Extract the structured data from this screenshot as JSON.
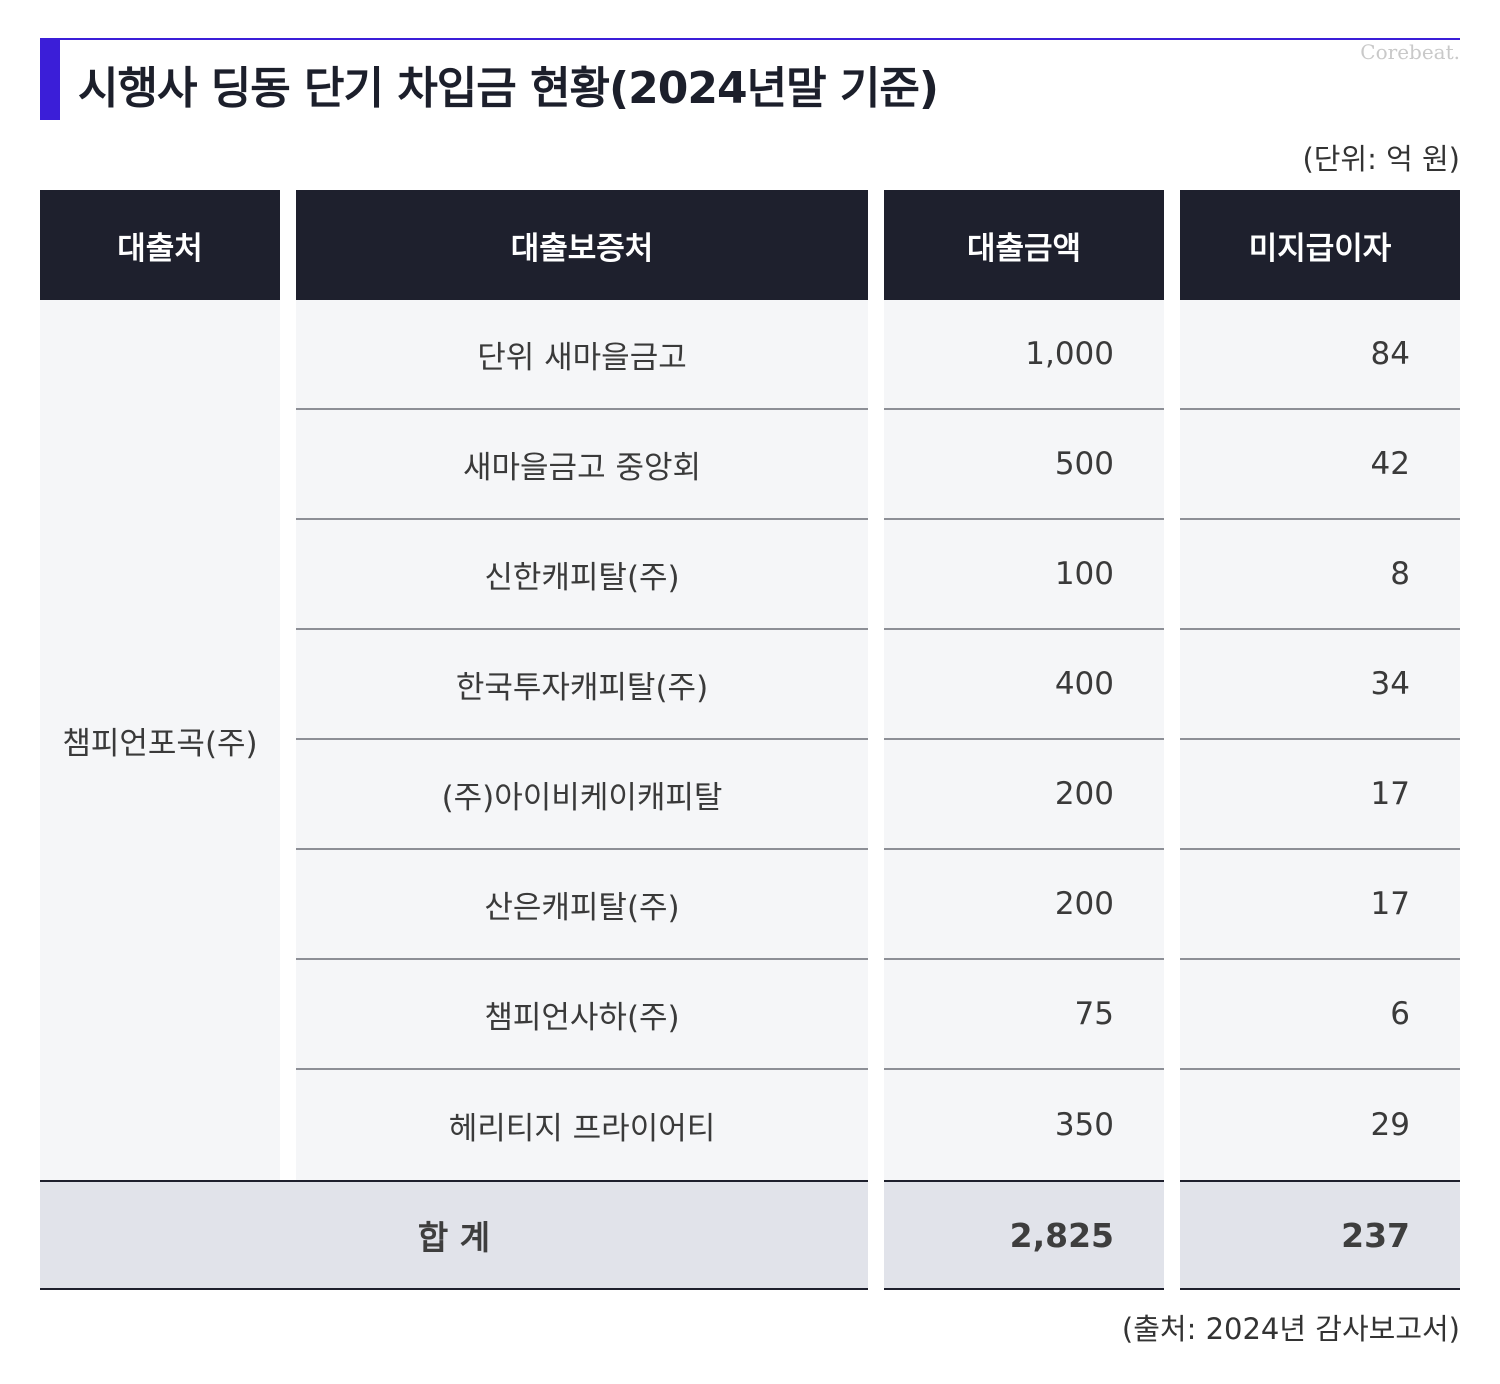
{
  "title": "시행사 딩동 단기 차입금 현황(2024년말 기준)",
  "brand": "Corebeat.",
  "unit_note": "(단위: 억 원)",
  "source_note": "(출처: 2024년 감사보고서)",
  "colors": {
    "accent": "#3b1ed8",
    "header_bg": "#1e202d",
    "body_bg": "#f5f6f8",
    "total_bg": "#e1e3ea"
  },
  "chart_data": {
    "type": "table",
    "columns": [
      "대출처",
      "대출보증처",
      "대출금액",
      "미지급이자"
    ],
    "borrower": "챔피언포곡(주)",
    "rows": [
      {
        "guarantor": "단위 새마을금고",
        "amount": "1,000",
        "interest": "84"
      },
      {
        "guarantor": "새마을금고 중앙회",
        "amount": "500",
        "interest": "42"
      },
      {
        "guarantor": "신한캐피탈(주)",
        "amount": "100",
        "interest": "8"
      },
      {
        "guarantor": "한국투자캐피탈(주)",
        "amount": "400",
        "interest": "34"
      },
      {
        "guarantor": "(주)아이비케이캐피탈",
        "amount": "200",
        "interest": "17"
      },
      {
        "guarantor": "산은캐피탈(주)",
        "amount": "200",
        "interest": "17"
      },
      {
        "guarantor": "챔피언사하(주)",
        "amount": "75",
        "interest": "6"
      },
      {
        "guarantor": "헤리티지 프라이어티",
        "amount": "350",
        "interest": "29"
      }
    ],
    "total": {
      "label": "합 계",
      "amount": "2,825",
      "interest": "237"
    }
  }
}
